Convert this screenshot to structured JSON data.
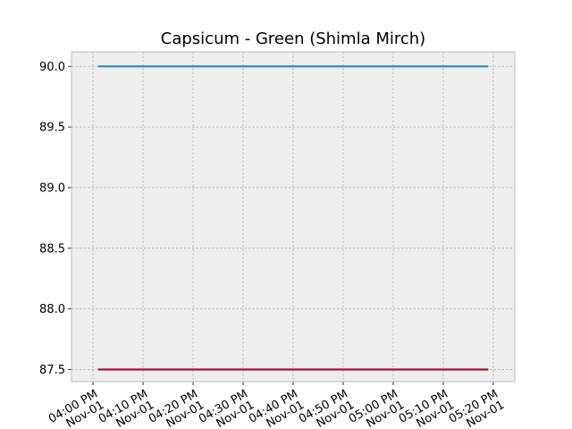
{
  "chart_data": {
    "type": "line",
    "title": "Capsicum - Green (Shimla Mirch)",
    "xlabel": "",
    "ylabel": "",
    "x_tick_labels": [
      [
        "04:00 PM",
        "Nov-01"
      ],
      [
        "04:10 PM",
        "Nov-01"
      ],
      [
        "04:20 PM",
        "Nov-01"
      ],
      [
        "04:30 PM",
        "Nov-01"
      ],
      [
        "04:40 PM",
        "Nov-01"
      ],
      [
        "04:50 PM",
        "Nov-01"
      ],
      [
        "05:00 PM",
        "Nov-01"
      ],
      [
        "05:10 PM",
        "Nov-01"
      ],
      [
        "05:20 PM",
        "Nov-01"
      ]
    ],
    "y_ticks": [
      "87.5",
      "88.0",
      "88.5",
      "89.0",
      "89.5",
      "90.0"
    ],
    "ylim": [
      87.4,
      90.12
    ],
    "xlim": [
      "04:00 PM",
      "05:20 PM"
    ],
    "grid": true,
    "series": [
      {
        "color": "#348ABD",
        "x": [
          "04:01 PM",
          "05:19 PM"
        ],
        "values": [
          90.0,
          90.0
        ]
      },
      {
        "color": "#A60628",
        "x": [
          "04:01 PM",
          "05:19 PM"
        ],
        "values": [
          87.5,
          87.5
        ]
      }
    ]
  },
  "colors": {
    "plot_background": "#EEEEEE",
    "grid": "#B2B2B2",
    "frame": "#BCBCBC"
  }
}
